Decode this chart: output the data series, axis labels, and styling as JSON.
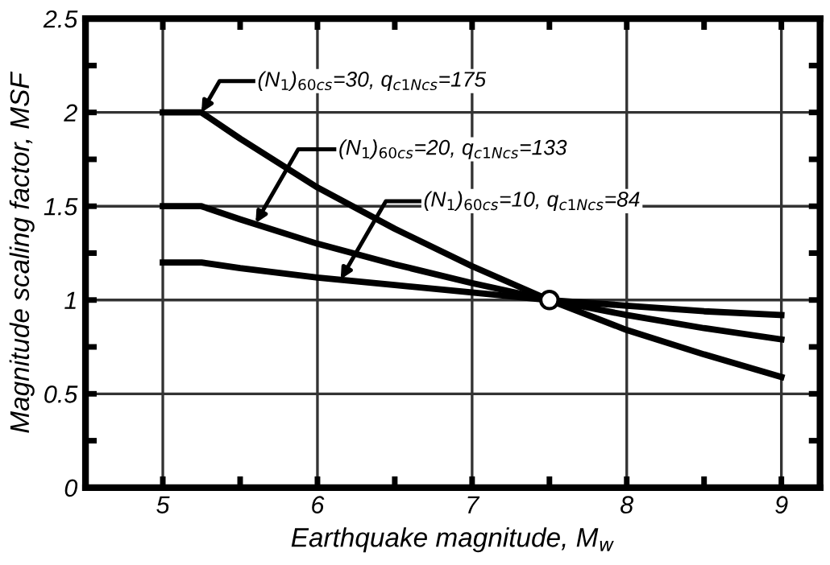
{
  "chart_data": {
    "type": "line",
    "xlabel": "Earthquake magnitude, M$_{w}$",
    "ylabel": "Magnitude scaling factor, MSF",
    "x": [
      5,
      5.25,
      5.5,
      6,
      6.5,
      7,
      7.5,
      8,
      8.5,
      9
    ],
    "series": [
      {
        "color": "#000000",
        "values": [
          2.0,
          2.0,
          1.86,
          1.6,
          1.38,
          1.18,
          1.0,
          0.84,
          0.71,
          0.59
        ]
      },
      {
        "color": "#000000",
        "values": [
          1.5,
          1.5,
          1.43,
          1.3,
          1.19,
          1.09,
          1.0,
          0.92,
          0.85,
          0.79
        ]
      },
      {
        "color": "#000000",
        "values": [
          1.2,
          1.2,
          1.17,
          1.12,
          1.08,
          1.04,
          1.0,
          0.97,
          0.94,
          0.92
        ]
      },
      {
        "type": "scatter",
        "color": "#ffffff",
        "x": [
          7.5
        ],
        "values": [
          1.0
        ],
        "marker": "circle"
      }
    ],
    "annotations": [
      {
        "text": "(N$_{1}$)$_{60cs}$=30, q$_{c1Ncs}$=175",
        "x": 5.25,
        "y": 2.0
      },
      {
        "text": "(N$_{1}$)$_{60cs}$=20, q$_{c1Ncs}$=133",
        "x": 5.6,
        "y": 1.41
      },
      {
        "text": "(N$_{1}$)$_{60cs}$=10, q$_{c1Ncs}$=84",
        "x": 6.15,
        "y": 1.11
      }
    ],
    "xlim": [
      4.5,
      9.25
    ],
    "xticks": [
      5,
      {
        "value": 5.5,
        "label": null
      },
      6,
      {
        "value": 6.5,
        "label": null
      },
      7,
      {
        "value": 7.5,
        "label": null
      },
      8,
      {
        "value": 8.5,
        "label": null
      },
      9
    ],
    "ylim": [
      0,
      2.5
    ],
    "yticks": [
      0,
      {
        "value": 0.25,
        "label": null
      },
      0.5,
      {
        "value": 0.75,
        "label": null
      },
      1,
      {
        "value": 1.25,
        "label": null
      },
      1.5,
      {
        "value": 1.75,
        "label": null
      },
      2,
      {
        "value": 2.25,
        "label": null
      },
      2.5
    ],
    "grid": true,
    "legend": false,
    "marker": "none",
    "line_style": "solid"
  }
}
